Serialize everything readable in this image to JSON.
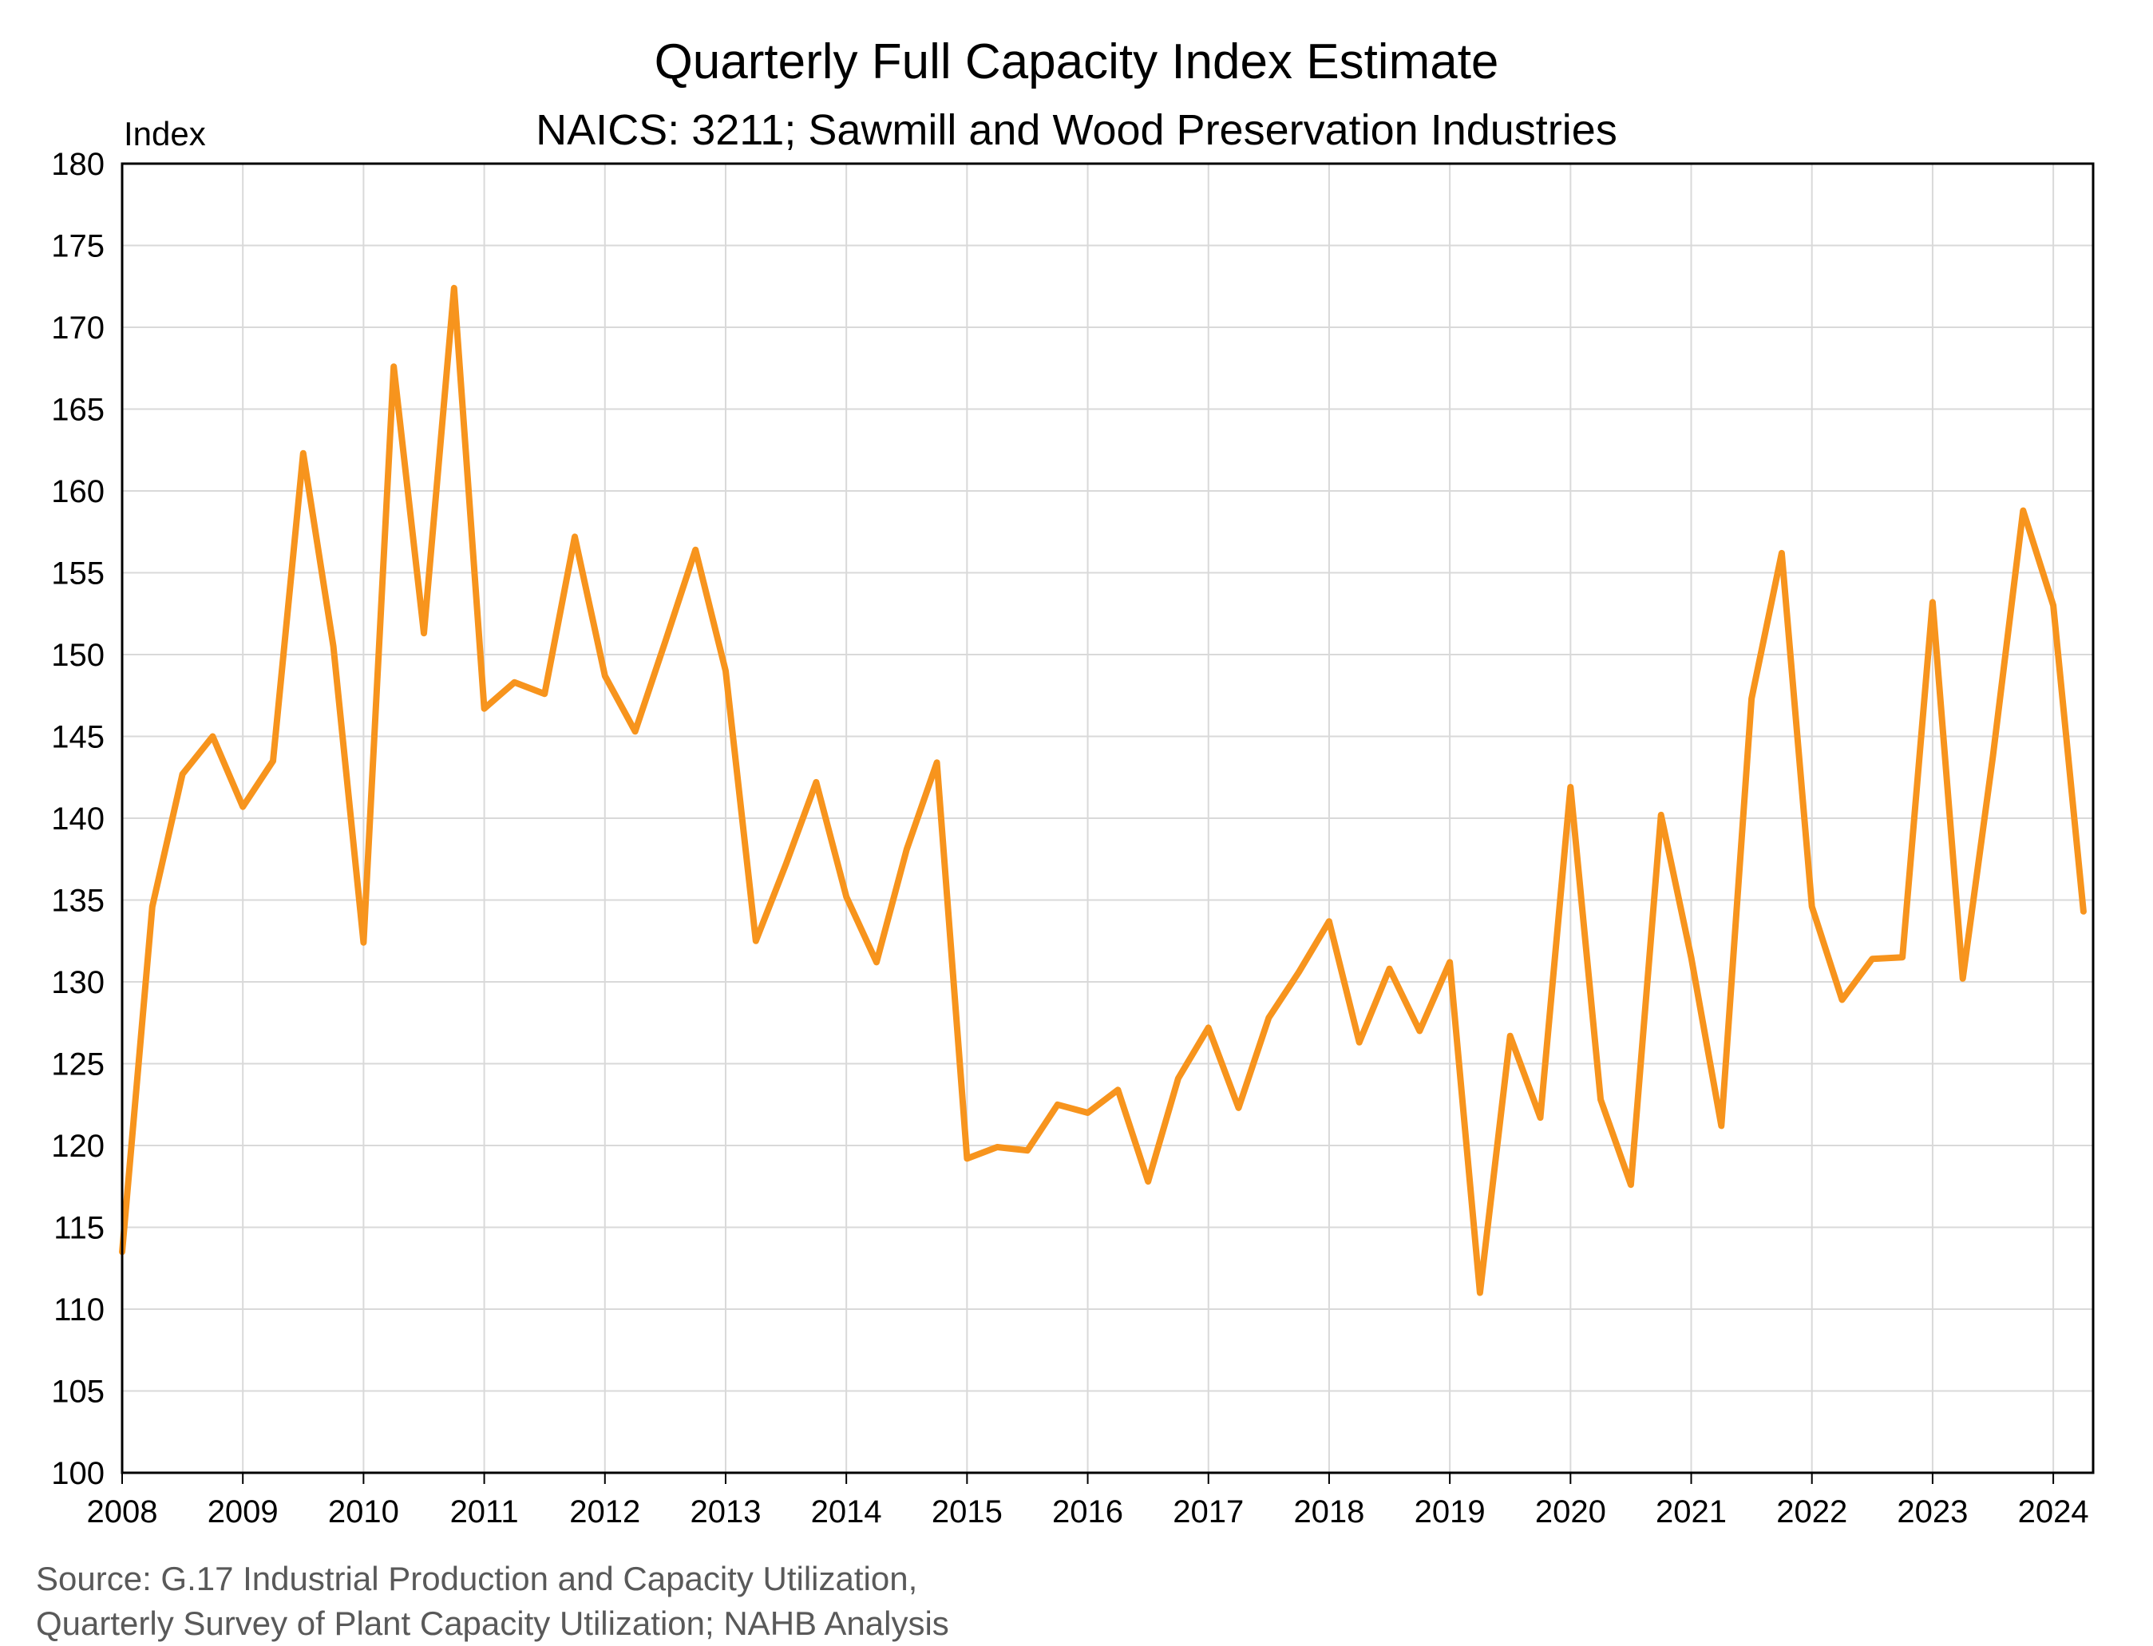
{
  "chart_data": {
    "type": "line",
    "title": "Quarterly Full Capacity Index Estimate",
    "subtitle": "NAICS: 3211; Sawmill and Wood Preservation Industries",
    "ylabel": "Index",
    "xlabel": "",
    "ylim": [
      100,
      180
    ],
    "yticks": [
      100,
      105,
      110,
      115,
      120,
      125,
      130,
      135,
      140,
      145,
      150,
      155,
      160,
      165,
      170,
      175,
      180
    ],
    "xticks": [
      "2008",
      "2009",
      "2010",
      "2011",
      "2012",
      "2013",
      "2014",
      "2015",
      "2016",
      "2017",
      "2018",
      "2019",
      "2020",
      "2021",
      "2022",
      "2023",
      "2024"
    ],
    "xlim": [
      2008,
      2024.33
    ],
    "grid": true,
    "legend": "none",
    "series": [
      {
        "color": "#F7941D",
        "x": [
          2008.0,
          2008.25,
          2008.5,
          2008.75,
          2009.0,
          2009.25,
          2009.5,
          2009.75,
          2010.0,
          2010.25,
          2010.5,
          2010.75,
          2011.0,
          2011.25,
          2011.5,
          2011.75,
          2012.0,
          2012.25,
          2012.5,
          2012.75,
          2013.0,
          2013.25,
          2013.5,
          2013.75,
          2014.0,
          2014.25,
          2014.5,
          2014.75,
          2015.0,
          2015.25,
          2015.5,
          2015.75,
          2016.0,
          2016.25,
          2016.5,
          2016.75,
          2017.0,
          2017.25,
          2017.5,
          2017.75,
          2018.0,
          2018.25,
          2018.5,
          2018.75,
          2019.0,
          2019.25,
          2019.5,
          2019.75,
          2020.0,
          2020.25,
          2020.5,
          2020.75,
          2021.0,
          2021.25,
          2021.5,
          2021.75,
          2022.0,
          2022.25,
          2022.5,
          2022.75,
          2023.0,
          2023.25,
          2023.5,
          2023.75,
          2024.0,
          2024.25
        ],
        "values": [
          113.5,
          134.6,
          142.7,
          145.0,
          140.7,
          143.5,
          162.3,
          150.5,
          132.4,
          167.6,
          151.3,
          172.4,
          146.7,
          148.3,
          147.6,
          157.2,
          148.7,
          145.3,
          150.8,
          156.4,
          149.0,
          132.5,
          137.2,
          142.2,
          135.2,
          131.2,
          138.1,
          143.4,
          119.2,
          119.9,
          119.7,
          122.5,
          122.0,
          123.4,
          117.8,
          124.1,
          127.2,
          122.3,
          127.8,
          130.6,
          133.7,
          126.3,
          130.8,
          127.0,
          131.2,
          111.0,
          126.7,
          121.7,
          141.9,
          122.8,
          117.6,
          140.2,
          131.5,
          121.2,
          147.3,
          156.2,
          134.6,
          128.9,
          131.4,
          131.5,
          153.2,
          130.2,
          143.8,
          158.8,
          153.0,
          134.3
        ]
      }
    ]
  },
  "source": {
    "line1": "Source: G.17 Industrial Production and Capacity Utilization,",
    "line2": "Quarterly Survey of Plant Capacity Utilization; NAHB Analysis"
  }
}
